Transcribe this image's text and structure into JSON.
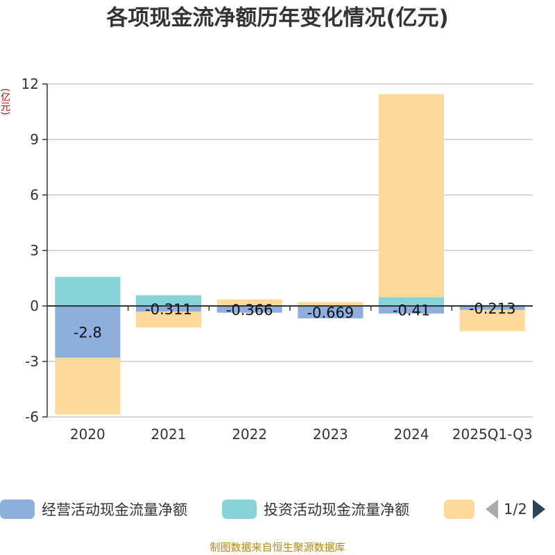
{
  "title": "各项现金流净额历年变化情况(亿元)",
  "unit_label": "(亿元)",
  "source": "制图数据来自恒生聚源数据库",
  "legend": {
    "items": [
      {
        "label": "经营活动现金流量净额",
        "color": "#8eaedc"
      },
      {
        "label": "投资活动现金流量净额",
        "color": "#86d4d8"
      },
      {
        "label": "",
        "color": "#fdd99a"
      }
    ],
    "page": "1/2"
  },
  "chart_data": {
    "type": "bar",
    "stacked": true,
    "title": "各项现金流净额历年变化情况(亿元)",
    "ylabel": "(亿元)",
    "ylim": [
      -6,
      12
    ],
    "yticks": [
      12,
      9,
      6,
      3,
      0,
      -3,
      -6
    ],
    "categories": [
      "2020",
      "2021",
      "2022",
      "2023",
      "2024",
      "2025Q1-Q3"
    ],
    "series": [
      {
        "name": "经营活动现金流量净额",
        "color": "#8eaedc",
        "values": [
          -2.8,
          -0.311,
          -0.366,
          -0.669,
          -0.41,
          -0.213
        ],
        "labels": [
          "-2.8",
          "-0.311",
          "-0.366",
          "-0.669",
          "-0.41",
          "-0.213"
        ]
      },
      {
        "name": "投资活动现金流量净额",
        "color": "#86d4d8",
        "values": [
          1.57,
          0.58,
          0.05,
          0.03,
          0.48,
          0.05
        ]
      },
      {
        "name": "",
        "color": "#fdd99a",
        "values": [
          -3.07,
          -0.85,
          0.3,
          0.18,
          10.97,
          -1.15
        ]
      }
    ]
  }
}
